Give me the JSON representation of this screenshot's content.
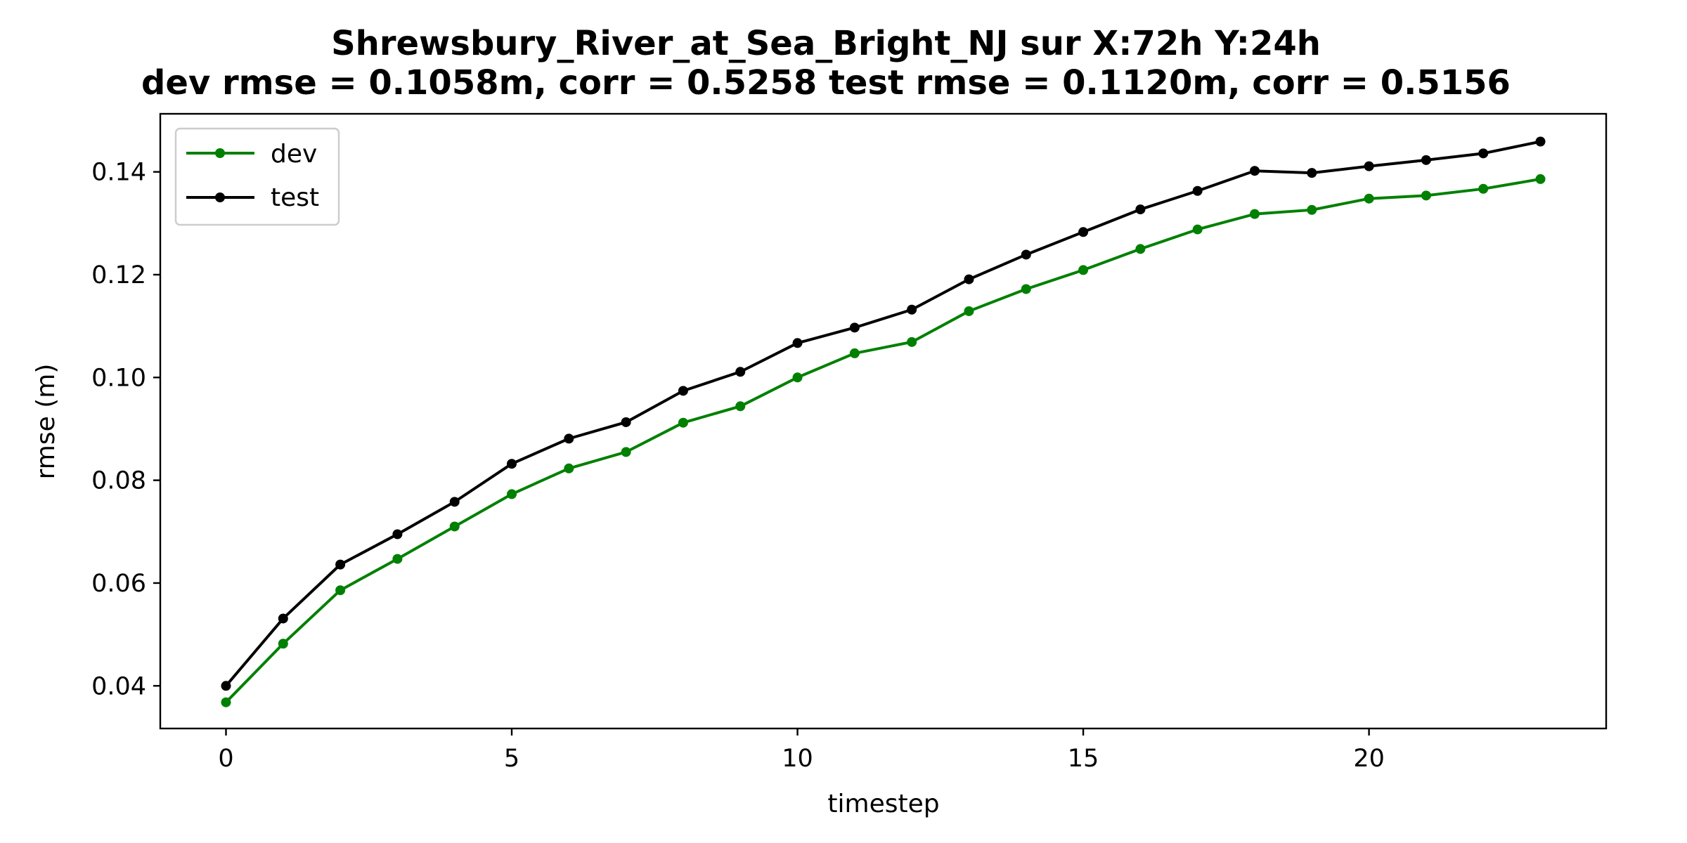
{
  "chart_data": {
    "type": "line",
    "title_lines": [
      "Shrewsbury_River_at_Sea_Bright_NJ   sur   X:72h   Y:24h",
      "dev rmse = 0.1058m, corr = 0.5258   test rmse = 0.1120m, corr = 0.5156"
    ],
    "xlabel": "timestep",
    "ylabel": "rmse (m)",
    "xlim": [
      -1.15,
      24.15
    ],
    "ylim": [
      0.0317,
      0.1513
    ],
    "xticks": [
      0,
      5,
      10,
      15,
      20
    ],
    "xtick_labels": [
      "0",
      "5",
      "10",
      "15",
      "20"
    ],
    "yticks": [
      0.04,
      0.06,
      0.08,
      0.1,
      0.12,
      0.14
    ],
    "ytick_labels": [
      "0.04",
      "0.06",
      "0.08",
      "0.10",
      "0.12",
      "0.14"
    ],
    "grid": false,
    "legend_position": "top-left",
    "x": [
      0,
      1,
      2,
      3,
      4,
      5,
      6,
      7,
      8,
      9,
      10,
      11,
      12,
      13,
      14,
      15,
      16,
      17,
      18,
      19,
      20,
      21,
      22,
      23
    ],
    "series": [
      {
        "name": "dev",
        "color": "#008000",
        "marker": "circle",
        "values": [
          0.0368,
          0.0482,
          0.0586,
          0.0647,
          0.071,
          0.0773,
          0.0823,
          0.0855,
          0.0912,
          0.0944,
          0.1,
          0.1047,
          0.1069,
          0.1129,
          0.1172,
          0.1209,
          0.125,
          0.1288,
          0.1318,
          0.1326,
          0.1348,
          0.1354,
          0.1367,
          0.1386
        ]
      },
      {
        "name": "test",
        "color": "#000000",
        "marker": "circle",
        "values": [
          0.04,
          0.0531,
          0.0636,
          0.0695,
          0.0758,
          0.0832,
          0.0881,
          0.0913,
          0.0974,
          0.1011,
          0.1067,
          0.1097,
          0.1132,
          0.1191,
          0.1239,
          0.1283,
          0.1327,
          0.1363,
          0.1402,
          0.1398,
          0.1411,
          0.1423,
          0.1436,
          0.1459
        ]
      }
    ]
  }
}
